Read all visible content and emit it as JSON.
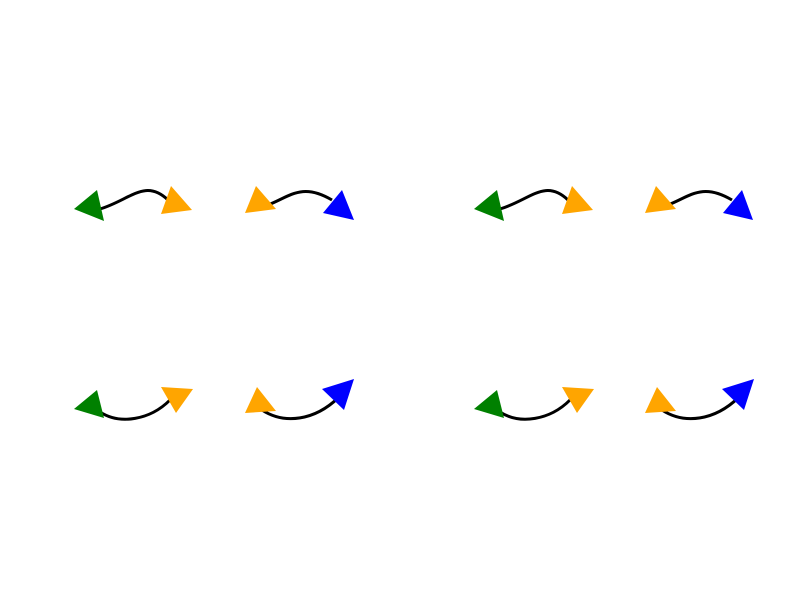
{
  "colors": {
    "background": "#ffffff",
    "curve": "#000000",
    "arrow_start_green": "#008000",
    "arrow_mid_orange": "#ffa500",
    "arrow_end_blue": "#0000ff"
  },
  "arrows": [
    {
      "name": "arrow-row1-col1",
      "curve": "s-shape",
      "start_head": "green-triangle",
      "end_head": "orange-triangle"
    },
    {
      "name": "arrow-row1-col2",
      "curve": "s-shape",
      "start_head": "orange-triangle",
      "end_head": "blue-triangle"
    },
    {
      "name": "arrow-row1-col3",
      "curve": "s-shape",
      "start_head": "green-triangle",
      "end_head": "orange-triangle"
    },
    {
      "name": "arrow-row1-col4",
      "curve": "s-shape",
      "start_head": "orange-triangle",
      "end_head": "blue-triangle"
    },
    {
      "name": "arrow-row2-col1",
      "curve": "arc-down",
      "start_head": "green-triangle",
      "end_head": "orange-triangle"
    },
    {
      "name": "arrow-row2-col2",
      "curve": "arc-down",
      "start_head": "orange-triangle",
      "end_head": "blue-triangle"
    },
    {
      "name": "arrow-row2-col3",
      "curve": "arc-down",
      "start_head": "green-triangle",
      "end_head": "orange-triangle"
    },
    {
      "name": "arrow-row2-col4",
      "curve": "arc-down",
      "start_head": "orange-triangle",
      "end_head": "blue-triangle"
    }
  ]
}
